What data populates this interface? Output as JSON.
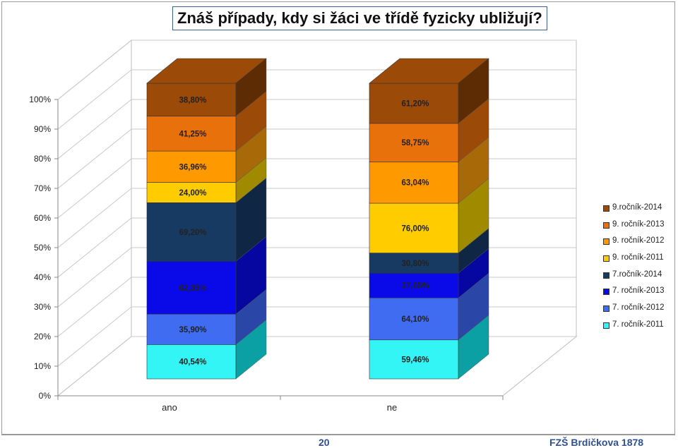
{
  "title": "Znáš případy, kdy si žáci ve třídě fyzicky ubližují?",
  "footer": {
    "page_number": "20",
    "school": "FZŠ Brdičkova 1878"
  },
  "chart_data": {
    "type": "bar",
    "stacked": "percent",
    "three_d": true,
    "categories": [
      "ano",
      "ne"
    ],
    "yticks": [
      "0%",
      "10%",
      "20%",
      "30%",
      "40%",
      "50%",
      "60%",
      "70%",
      "80%",
      "90%",
      "100%"
    ],
    "ylim": [
      0,
      100
    ],
    "legend_position": "right",
    "series": [
      {
        "name": "7. ročník-2011",
        "color": "#33F5F5",
        "side": "#0AA0A4",
        "values": [
          40.54,
          59.46
        ],
        "labels": [
          "40,54%",
          "59,46%"
        ]
      },
      {
        "name": "7. ročník-2012",
        "color": "#3F6CF0",
        "side": "#2A47A8",
        "values": [
          35.9,
          64.1
        ],
        "labels": [
          "35,90%",
          "64,10%"
        ]
      },
      {
        "name": "7. ročník-2013",
        "color": "#0A0AE8",
        "side": "#0606A0",
        "values": [
          62.35,
          37.65
        ],
        "labels": [
          "62,35%",
          "37,65%"
        ]
      },
      {
        "name": "7.ročník-2014",
        "color": "#173A63",
        "side": "#0F2744",
        "values": [
          69.2,
          30.8
        ],
        "labels": [
          "69,20%",
          "30,80%"
        ]
      },
      {
        "name": "9. ročník-2011",
        "color": "#FFCC00",
        "side": "#A08A00",
        "values": [
          24.0,
          76.0
        ],
        "labels": [
          "24,00%",
          "76,00%"
        ]
      },
      {
        "name": "9. ročník-2012",
        "color": "#FF9900",
        "side": "#A86A08",
        "values": [
          36.96,
          63.04
        ],
        "labels": [
          "36,96%",
          "63,04%"
        ]
      },
      {
        "name": "9. ročník-2013",
        "color": "#E8710C",
        "side": "#9C4A08",
        "values": [
          41.25,
          58.75
        ],
        "labels": [
          "41,25%",
          "58,75%"
        ]
      },
      {
        "name": "9.ročník-2014",
        "color": "#9B4A08",
        "side": "#5E2C04",
        "values": [
          38.8,
          61.2
        ],
        "labels": [
          "38,80%",
          "61,20%"
        ]
      }
    ]
  }
}
